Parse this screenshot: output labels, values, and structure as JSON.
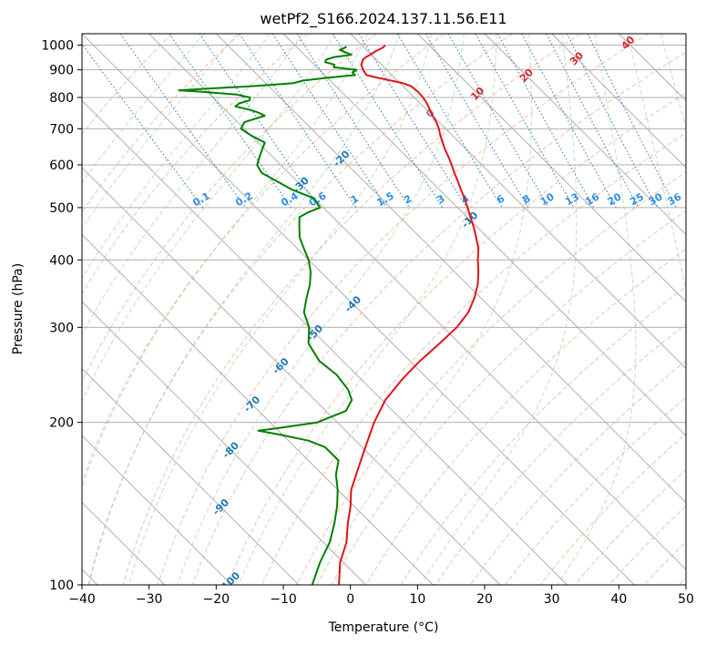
{
  "chart_data": {
    "type": "line",
    "title": "wetPf2_S166.2024.137.11.56.E11",
    "xlabel": "Temperature (°C)",
    "ylabel": "Pressure (hPa)",
    "xlim": [
      -40,
      50
    ],
    "ylim": [
      1050,
      100
    ],
    "y_scale": "log",
    "grid": true,
    "x_ticks": [
      -40,
      -30,
      -20,
      -10,
      0,
      10,
      20,
      30,
      40,
      50
    ],
    "y_ticks": [
      100,
      200,
      300,
      400,
      500,
      600,
      700,
      800,
      900,
      1000
    ],
    "isotherms": [
      -100,
      -90,
      -80,
      -70,
      -60,
      -50,
      -40,
      -30,
      -20,
      -10,
      0,
      10,
      20,
      30,
      40
    ],
    "mixing_ratio_labels": [
      "0.1",
      "0.2",
      "0.4",
      "0.6",
      "1",
      "1.5",
      "2",
      "3",
      "4",
      "6",
      "8",
      "10",
      "13",
      "16",
      "20",
      "25",
      "30",
      "36"
    ],
    "mixing_ratio_values": [
      0.1,
      0.2,
      0.4,
      0.6,
      1,
      1.5,
      2,
      3,
      4,
      6,
      8,
      10,
      13,
      16,
      20,
      25,
      30,
      36
    ],
    "series": [
      {
        "color": "#e0141a",
        "points": [
          [
            1000,
            3.5
          ],
          [
            990,
            2.8
          ],
          [
            975,
            1.2
          ],
          [
            960,
            -0.2
          ],
          [
            950,
            -1.2
          ],
          [
            940,
            -2.0
          ],
          [
            920,
            -3.0
          ],
          [
            900,
            -3.5
          ],
          [
            880,
            -3.8
          ],
          [
            870,
            -2.5
          ],
          [
            860,
            -1.0
          ],
          [
            850,
            0.5
          ],
          [
            840,
            1.2
          ],
          [
            820,
            1.4
          ],
          [
            800,
            1.3
          ],
          [
            780,
            1.0
          ],
          [
            760,
            0.5
          ],
          [
            740,
            0.0
          ],
          [
            720,
            -0.4
          ],
          [
            700,
            -1.0
          ],
          [
            680,
            -1.8
          ],
          [
            660,
            -2.5
          ],
          [
            640,
            -3.2
          ],
          [
            620,
            -3.8
          ],
          [
            600,
            -4.5
          ],
          [
            580,
            -5.3
          ],
          [
            560,
            -6.0
          ],
          [
            540,
            -6.8
          ],
          [
            520,
            -7.6
          ],
          [
            500,
            -8.5
          ],
          [
            480,
            -9.5
          ],
          [
            460,
            -10.5
          ],
          [
            440,
            -11.7
          ],
          [
            420,
            -13.0
          ],
          [
            400,
            -14.8
          ],
          [
            380,
            -16.5
          ],
          [
            360,
            -18.5
          ],
          [
            340,
            -21.0
          ],
          [
            320,
            -24.0
          ],
          [
            300,
            -28.0
          ],
          [
            280,
            -33.0
          ],
          [
            260,
            -38.5
          ],
          [
            240,
            -44.0
          ],
          [
            220,
            -49.5
          ],
          [
            200,
            -54.5
          ],
          [
            180,
            -59.5
          ],
          [
            160,
            -65.0
          ],
          [
            150,
            -68.0
          ],
          [
            140,
            -70.5
          ],
          [
            130,
            -73.5
          ],
          [
            120,
            -76.5
          ],
          [
            110,
            -80.5
          ],
          [
            100,
            -84.0
          ]
        ]
      },
      {
        "color": "#008000",
        "points": [
          [
            995,
            -2.5
          ],
          [
            990,
            -2.8
          ],
          [
            980,
            -4.0
          ],
          [
            970,
            -3.5
          ],
          [
            960,
            -3.0
          ],
          [
            950,
            -6.0
          ],
          [
            940,
            -7.5
          ],
          [
            930,
            -8.0
          ],
          [
            920,
            -7.0
          ],
          [
            910,
            -7.5
          ],
          [
            900,
            -4.5
          ],
          [
            890,
            -5.5
          ],
          [
            880,
            -5.5
          ],
          [
            870,
            -10.0
          ],
          [
            860,
            -14.0
          ],
          [
            850,
            -16.0
          ],
          [
            840,
            -22.0
          ],
          [
            830,
            -30.0
          ],
          [
            825,
            -34.0
          ],
          [
            820,
            -31.0
          ],
          [
            810,
            -26.0
          ],
          [
            800,
            -24.5
          ],
          [
            790,
            -25.0
          ],
          [
            780,
            -27.0
          ],
          [
            770,
            -28.0
          ],
          [
            760,
            -26.5
          ],
          [
            750,
            -25.5
          ],
          [
            740,
            -25.0
          ],
          [
            720,
            -29.0
          ],
          [
            700,
            -30.5
          ],
          [
            680,
            -30.0
          ],
          [
            660,
            -29.0
          ],
          [
            640,
            -30.5
          ],
          [
            620,
            -32.0
          ],
          [
            600,
            -33.5
          ],
          [
            580,
            -34.0
          ],
          [
            560,
            -33.0
          ],
          [
            540,
            -32.0
          ],
          [
            520,
            -30.0
          ],
          [
            500,
            -30.5
          ],
          [
            490,
            -33.0
          ],
          [
            480,
            -35.0
          ],
          [
            460,
            -36.5
          ],
          [
            440,
            -38.0
          ],
          [
            420,
            -39.0
          ],
          [
            400,
            -40.0
          ],
          [
            380,
            -41.5
          ],
          [
            360,
            -43.5
          ],
          [
            340,
            -46.0
          ],
          [
            320,
            -48.5
          ],
          [
            300,
            -50.0
          ],
          [
            280,
            -52.5
          ],
          [
            260,
            -53.5
          ],
          [
            245,
            -53.0
          ],
          [
            230,
            -53.5
          ],
          [
            220,
            -54.5
          ],
          [
            210,
            -57.0
          ],
          [
            200,
            -63.0
          ],
          [
            195,
            -70.0
          ],
          [
            193,
            -73.0
          ],
          [
            190,
            -70.5
          ],
          [
            185,
            -67.0
          ],
          [
            180,
            -65.5
          ],
          [
            170,
            -65.5
          ],
          [
            160,
            -68.0
          ],
          [
            150,
            -70.0
          ],
          [
            140,
            -72.5
          ],
          [
            130,
            -75.5
          ],
          [
            120,
            -79.0
          ],
          [
            110,
            -83.5
          ],
          [
            100,
            -88.0
          ]
        ]
      }
    ]
  }
}
